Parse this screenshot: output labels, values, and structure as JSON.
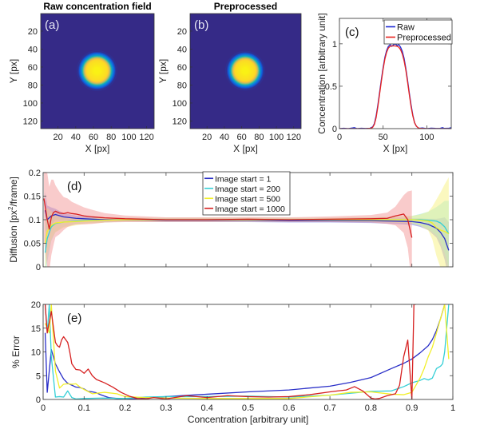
{
  "figure": {
    "panels": [
      "a",
      "b",
      "c",
      "d",
      "e"
    ]
  },
  "chart_data": [
    {
      "id": "a",
      "type": "heatmap",
      "title": "Raw concentration field",
      "panel_label": "(a)",
      "xlabel": "X [px]",
      "ylabel": "Y [px]",
      "xlim": [
        0.5,
        128.5
      ],
      "ylim": [
        0.5,
        128.5
      ],
      "y_reversed": true,
      "xticks": [
        20,
        40,
        60,
        80,
        100,
        120
      ],
      "yticks": [
        20,
        40,
        60,
        80,
        100,
        120
      ],
      "colormap": "parula",
      "blob": {
        "center_x": 64,
        "center_y": 64,
        "plateau_radius": 12,
        "edge_radius": 23,
        "peak": 1.0,
        "background": 0.0
      },
      "noisy": true
    },
    {
      "id": "b",
      "type": "heatmap",
      "title": "Preprocessed",
      "panel_label": "(b)",
      "xlabel": "X [px]",
      "ylabel": "Y [px]",
      "xlim": [
        0.5,
        128.5
      ],
      "ylim": [
        0.5,
        128.5
      ],
      "y_reversed": true,
      "xticks": [
        20,
        40,
        60,
        80,
        100,
        120
      ],
      "yticks": [
        20,
        40,
        60,
        80,
        100,
        120
      ],
      "colormap": "parula",
      "blob": {
        "center_x": 64,
        "center_y": 64,
        "plateau_radius": 12,
        "edge_radius": 23,
        "peak": 1.0,
        "background": 0.0
      },
      "noisy": false
    },
    {
      "id": "c",
      "type": "line",
      "panel_label": "(c)",
      "xlabel": "X [px]",
      "ylabel": "Concentration [arbitrary unit]",
      "xlim": [
        0,
        128
      ],
      "ylim": [
        0,
        1.3
      ],
      "xticks": [
        0,
        50,
        100
      ],
      "yticks": [
        0,
        0.5,
        1
      ],
      "ytick_labels": [
        "0",
        "0.5",
        "1"
      ],
      "legend": {
        "placement": "top-right"
      },
      "series": [
        {
          "name": "Raw",
          "color": "#1f2bd6",
          "x": [
            0,
            5,
            10,
            15,
            17,
            20,
            25,
            30,
            35,
            38,
            40,
            42,
            44,
            46,
            48,
            50,
            52,
            54,
            56,
            58,
            60,
            62,
            64,
            66,
            68,
            70,
            72,
            74,
            76,
            78,
            80,
            82,
            84,
            86,
            88,
            90,
            92,
            95,
            100,
            105,
            110,
            115,
            118,
            120,
            125,
            128
          ],
          "y": [
            0,
            0.005,
            0,
            0.008,
            0.012,
            0,
            0.004,
            0.002,
            0.005,
            0.02,
            0.06,
            0.15,
            0.28,
            0.43,
            0.58,
            0.72,
            0.84,
            0.92,
            0.97,
            0.99,
            0.97,
            0.99,
            1.0,
            0.98,
            0.99,
            0.96,
            0.91,
            0.83,
            0.71,
            0.57,
            0.42,
            0.28,
            0.16,
            0.07,
            0.03,
            0.01,
            0.004,
            0.008,
            0,
            0.006,
            0.003,
            0.002,
            0.012,
            0.003,
            0.004,
            0.012
          ]
        },
        {
          "name": "Preprocessed",
          "color": "#e8221e",
          "x": [
            0,
            10,
            20,
            30,
            36,
            38,
            40,
            42,
            44,
            46,
            48,
            50,
            52,
            54,
            56,
            58,
            60,
            62,
            64,
            66,
            68,
            70,
            72,
            74,
            76,
            78,
            80,
            82,
            84,
            86,
            88,
            90,
            92,
            100,
            110,
            120,
            128
          ],
          "y": [
            0,
            0,
            0,
            0,
            0.005,
            0.015,
            0.05,
            0.13,
            0.26,
            0.41,
            0.56,
            0.7,
            0.82,
            0.9,
            0.95,
            0.97,
            0.975,
            0.975,
            0.975,
            0.97,
            0.96,
            0.93,
            0.88,
            0.8,
            0.69,
            0.55,
            0.4,
            0.26,
            0.15,
            0.07,
            0.03,
            0.01,
            0.003,
            0,
            0,
            0,
            0
          ]
        }
      ]
    },
    {
      "id": "d",
      "type": "line",
      "panel_label": "(d)",
      "xlabel": "",
      "ylabel": "Diffusion [px²/frame]",
      "ylabel_parts": [
        "Diffusion [px",
        "2",
        "/frame]"
      ],
      "xlim": [
        0,
        1
      ],
      "ylim": [
        0,
        0.2
      ],
      "xticks": [
        0,
        0.1,
        0.2,
        0.3,
        0.4,
        0.5,
        0.6,
        0.7,
        0.8,
        0.9,
        1
      ],
      "xtick_labels_shown": false,
      "yticks": [
        0,
        0.05,
        0.1,
        0.15,
        0.2
      ],
      "ytick_labels": [
        "0",
        "0.05",
        "0.1",
        "0.15",
        "0.2"
      ],
      "legend": {
        "placement": "top-center"
      },
      "series": [
        {
          "name": "Image start = 1",
          "color": "#2a2fc8",
          "band_color": "#7b7be8",
          "x": [
            0.005,
            0.01,
            0.02,
            0.03,
            0.05,
            0.08,
            0.1,
            0.15,
            0.2,
            0.3,
            0.4,
            0.5,
            0.6,
            0.7,
            0.8,
            0.85,
            0.9,
            0.92,
            0.94,
            0.96,
            0.97,
            0.98,
            0.99
          ],
          "y": [
            0.12,
            0.1,
            0.108,
            0.111,
            0.106,
            0.103,
            0.102,
            0.1,
            0.1,
            0.099,
            0.099,
            0.099,
            0.098,
            0.098,
            0.098,
            0.097,
            0.096,
            0.094,
            0.09,
            0.082,
            0.073,
            0.06,
            0.035
          ],
          "band": [
            0.04,
            0.03,
            0.018,
            0.012,
            0.008,
            0.006,
            0.005,
            0.004,
            0.004,
            0.004,
            0.004,
            0.004,
            0.004,
            0.004,
            0.005,
            0.006,
            0.007,
            0.009,
            0.012,
            0.02,
            0.03,
            0.045,
            0.06
          ]
        },
        {
          "name": "Image start = 200",
          "color": "#34cfd6",
          "band_color": "#8ee6ea",
          "x": [
            0.005,
            0.01,
            0.02,
            0.03,
            0.05,
            0.08,
            0.1,
            0.15,
            0.2,
            0.3,
            0.4,
            0.5,
            0.6,
            0.7,
            0.8,
            0.85,
            0.9,
            0.92,
            0.94,
            0.96,
            0.97,
            0.98,
            0.99
          ],
          "y": [
            0.03,
            0.06,
            0.085,
            0.092,
            0.095,
            0.097,
            0.098,
            0.099,
            0.1,
            0.1,
            0.1,
            0.1,
            0.1,
            0.1,
            0.1,
            0.1,
            0.1,
            0.1,
            0.099,
            0.097,
            0.093,
            0.085,
            0.07
          ],
          "band": [
            0.06,
            0.05,
            0.03,
            0.018,
            0.01,
            0.007,
            0.006,
            0.005,
            0.004,
            0.004,
            0.004,
            0.004,
            0.004,
            0.004,
            0.005,
            0.006,
            0.008,
            0.012,
            0.018,
            0.03,
            0.04,
            0.055,
            0.07
          ]
        },
        {
          "name": "Image start = 500",
          "color": "#f2ef2a",
          "band_color": "#f7f38a",
          "x": [
            0.005,
            0.01,
            0.02,
            0.03,
            0.05,
            0.08,
            0.1,
            0.15,
            0.2,
            0.3,
            0.4,
            0.5,
            0.6,
            0.7,
            0.8,
            0.85,
            0.9,
            0.92,
            0.94,
            0.95,
            0.96,
            0.97,
            0.98,
            0.99
          ],
          "y": [
            0.05,
            0.075,
            0.088,
            0.093,
            0.095,
            0.096,
            0.097,
            0.099,
            0.1,
            0.1,
            0.1,
            0.1,
            0.1,
            0.1,
            0.1,
            0.1,
            0.1,
            0.099,
            0.097,
            0.093,
            0.083,
            0.078,
            0.075,
            0.07
          ],
          "band": [
            0.07,
            0.05,
            0.03,
            0.02,
            0.012,
            0.008,
            0.006,
            0.005,
            0.004,
            0.004,
            0.004,
            0.004,
            0.004,
            0.004,
            0.005,
            0.006,
            0.008,
            0.012,
            0.02,
            0.035,
            0.06,
            0.08,
            0.1,
            0.12
          ]
        },
        {
          "name": "Image start = 1000",
          "color": "#d62020",
          "band_color": "#f4a0a0",
          "x": [
            0.002,
            0.01,
            0.015,
            0.02,
            0.025,
            0.03,
            0.04,
            0.05,
            0.06,
            0.07,
            0.08,
            0.1,
            0.12,
            0.15,
            0.2,
            0.3,
            0.4,
            0.5,
            0.6,
            0.7,
            0.8,
            0.84,
            0.86,
            0.87,
            0.88,
            0.89,
            0.9
          ],
          "y": [
            0.145,
            0.1,
            0.08,
            0.105,
            0.115,
            0.118,
            0.114,
            0.113,
            0.115,
            0.113,
            0.112,
            0.108,
            0.106,
            0.104,
            0.102,
            0.1,
            0.1,
            0.101,
            0.1,
            0.101,
            0.102,
            0.103,
            0.108,
            0.11,
            0.112,
            0.1,
            0.062
          ],
          "band": [
            0.09,
            0.1,
            0.09,
            0.08,
            0.07,
            0.055,
            0.045,
            0.035,
            0.03,
            0.025,
            0.022,
            0.018,
            0.015,
            0.01,
            0.007,
            0.005,
            0.005,
            0.005,
            0.005,
            0.006,
            0.008,
            0.012,
            0.02,
            0.03,
            0.04,
            0.06,
            0.1
          ]
        }
      ]
    },
    {
      "id": "e",
      "type": "line",
      "panel_label": "(e)",
      "xlabel": "Concentration [arbitrary unit]",
      "ylabel": "% Error",
      "xlim": [
        0,
        1
      ],
      "ylim": [
        0,
        20
      ],
      "xticks": [
        0,
        0.1,
        0.2,
        0.3,
        0.4,
        0.5,
        0.6,
        0.7,
        0.8,
        0.9,
        1
      ],
      "xtick_labels": [
        "0",
        "0.1",
        "0.2",
        "0.3",
        "0.4",
        "0.5",
        "0.6",
        "0.7",
        "0.8",
        "0.9",
        "1"
      ],
      "yticks": [
        0,
        5,
        10,
        15,
        20
      ],
      "ytick_labels": [
        "0",
        "5",
        "10",
        "15",
        "20"
      ],
      "series": [
        {
          "name": "Image start = 1",
          "color": "#2a2fc8",
          "x": [
            0.005,
            0.01,
            0.02,
            0.03,
            0.04,
            0.05,
            0.06,
            0.07,
            0.08,
            0.09,
            0.1,
            0.11,
            0.12,
            0.13,
            0.14,
            0.15,
            0.16,
            0.18,
            0.2,
            0.22,
            0.25,
            0.3,
            0.4,
            0.5,
            0.6,
            0.7,
            0.75,
            0.8,
            0.85,
            0.88,
            0.9,
            0.92,
            0.94,
            0.95,
            0.96,
            0.97,
            0.98
          ],
          "y": [
            14,
            1.5,
            10.5,
            7.5,
            5.8,
            4.3,
            3.4,
            3.0,
            2.6,
            2.5,
            2.2,
            1.7,
            1.6,
            1.4,
            1.0,
            0.7,
            0.4,
            0.2,
            0.1,
            0.1,
            0.3,
            0.6,
            1.1,
            1.6,
            2.0,
            2.8,
            3.6,
            4.6,
            6.5,
            7.6,
            8.5,
            9.8,
            11.3,
            12.6,
            14.5,
            17,
            20
          ]
        },
        {
          "name": "Image start = 200",
          "color": "#34cfd6",
          "x": [
            0.005,
            0.01,
            0.015,
            0.02,
            0.03,
            0.04,
            0.05,
            0.06,
            0.07,
            0.08,
            0.1,
            0.15,
            0.2,
            0.25,
            0.3,
            0.4,
            0.5,
            0.6,
            0.7,
            0.8,
            0.85,
            0.87,
            0.88,
            0.9,
            0.92,
            0.93,
            0.94,
            0.95,
            0.96,
            0.97,
            0.975,
            0.98,
            0.99
          ],
          "y": [
            20,
            14,
            20,
            9,
            0.5,
            0.6,
            0.5,
            1.8,
            0.4,
            0.1,
            0.2,
            0.3,
            0.2,
            0.5,
            0.6,
            0.6,
            0.7,
            0.5,
            0.9,
            1.7,
            1.8,
            2.4,
            2.7,
            3.5,
            4.0,
            4.4,
            4.1,
            4.5,
            6.5,
            7.0,
            7.5,
            10,
            20
          ]
        },
        {
          "name": "Image start = 500",
          "color": "#f2ef2a",
          "x": [
            0.005,
            0.01,
            0.015,
            0.02,
            0.03,
            0.04,
            0.05,
            0.06,
            0.07,
            0.08,
            0.09,
            0.1,
            0.12,
            0.15,
            0.18,
            0.2,
            0.25,
            0.3,
            0.4,
            0.5,
            0.6,
            0.7,
            0.75,
            0.8,
            0.85,
            0.88,
            0.9,
            0.91,
            0.92,
            0.93,
            0.94,
            0.95,
            0.96,
            0.97,
            0.98,
            0.99
          ],
          "y": [
            16,
            15,
            14,
            20,
            6,
            2.4,
            3.2,
            3.3,
            3.2,
            3.3,
            2.6,
            2.1,
            1.2,
            1.5,
            1.2,
            0.6,
            0.4,
            0.3,
            0.2,
            0.2,
            0.2,
            0.9,
            1.5,
            1.6,
            1.1,
            1.0,
            1.5,
            3,
            4.5,
            6.5,
            9,
            11,
            14,
            17,
            20,
            8.5
          ]
        },
        {
          "name": "Image start = 1000",
          "color": "#d62020",
          "x": [
            0.005,
            0.01,
            0.02,
            0.03,
            0.035,
            0.04,
            0.045,
            0.05,
            0.06,
            0.065,
            0.07,
            0.08,
            0.09,
            0.1,
            0.11,
            0.12,
            0.13,
            0.15,
            0.17,
            0.19,
            0.21,
            0.23,
            0.25,
            0.27,
            0.3,
            0.35,
            0.4,
            0.45,
            0.5,
            0.55,
            0.6,
            0.65,
            0.7,
            0.72,
            0.74,
            0.76,
            0.78,
            0.8,
            0.81,
            0.82,
            0.84,
            0.86,
            0.87,
            0.88,
            0.89,
            0.9,
            0.905,
            0.91
          ],
          "y": [
            20,
            14,
            18.5,
            12,
            11.3,
            11,
            12.5,
            13.2,
            12,
            10,
            7.5,
            6.3,
            6.2,
            5.5,
            6.4,
            5.0,
            4.2,
            3.5,
            2.6,
            1.5,
            0.7,
            0.2,
            0.1,
            0.4,
            0.1,
            0.8,
            0.4,
            0.8,
            0.6,
            0.5,
            0.6,
            1.0,
            1.6,
            1.8,
            2.0,
            2.7,
            1.8,
            0.3,
            0.1,
            0.2,
            0.8,
            1.2,
            3.0,
            9,
            12.5,
            0,
            20,
            20
          ]
        }
      ]
    }
  ]
}
